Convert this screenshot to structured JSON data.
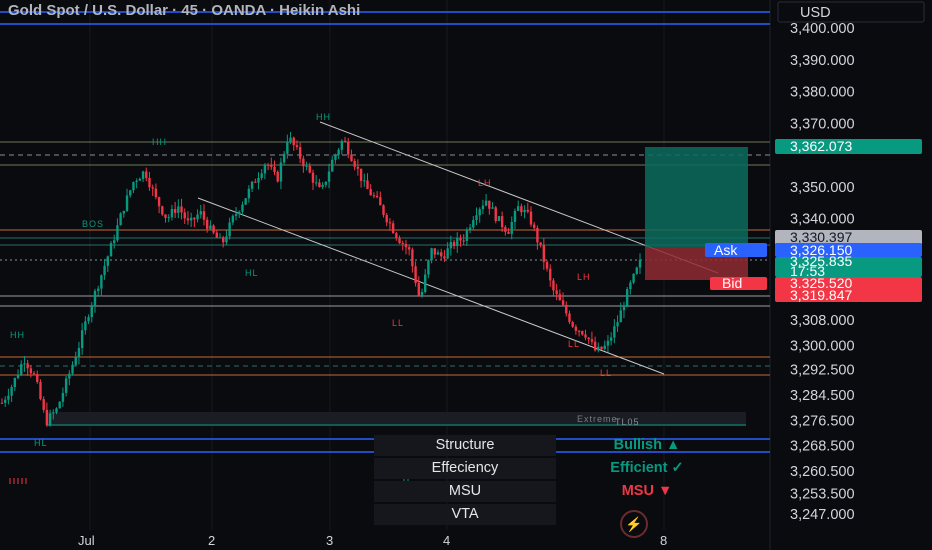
{
  "header": {
    "title": "Gold Spot / U.S. Dollar · 45 · OANDA · Heikin Ashi"
  },
  "axis": {
    "currency": "USD"
  },
  "chart_data": {
    "type": "candlestick",
    "symbol": "Gold Spot / U.S. Dollar",
    "interval": "45",
    "broker": "OANDA",
    "style": "Heikin Ashi",
    "y_ticks": [
      3400,
      3390,
      3380,
      3370,
      3350,
      3340,
      3308,
      3300,
      3292.5,
      3284.5,
      3276.5,
      3268.5,
      3260.5,
      3253.5,
      3247
    ],
    "y_tick_labels": [
      "3,400.000",
      "3,390.000",
      "3,380.000",
      "3,370.000",
      "3,350.000",
      "3,340.000",
      "3,308.000",
      "3,300.000",
      "3,292.500",
      "3,284.500",
      "3,276.500",
      "3,268.500",
      "3,260.500",
      "3,253.500",
      "3,247.000"
    ],
    "x_labels": [
      "Jul",
      "2",
      "3",
      "4",
      "8"
    ],
    "price_tags": [
      {
        "label": "3,362.073",
        "color": "#089981",
        "prefix": ""
      },
      {
        "label": "3,330.397",
        "color": "#b2b5be",
        "prefix": ""
      },
      {
        "label": "3,326.150",
        "color": "#2962ff",
        "prefix": "Ask"
      },
      {
        "label": "3,325.835",
        "color": "#089981",
        "prefix": "",
        "sub": "17:53"
      },
      {
        "label": "3,325.520",
        "color": "#f23645",
        "prefix": "Bid"
      },
      {
        "label": "3,319.847",
        "color": "#f23645",
        "prefix": ""
      }
    ],
    "structure_labels": [
      "HH",
      "HH",
      "HH",
      "HL",
      "HL",
      "LL",
      "LL",
      "LL",
      "LH",
      "LH",
      "BOS"
    ],
    "annotations": [
      "Extreme",
      "TL05"
    ],
    "ohlc_path": [
      3282,
      3288,
      3296,
      3290,
      3276,
      3280,
      3290,
      3300,
      3312,
      3322,
      3332,
      3343,
      3352,
      3355,
      3346,
      3340,
      3344,
      3338,
      3342,
      3336,
      3332,
      3340,
      3346,
      3352,
      3358,
      3352,
      3366,
      3360,
      3354,
      3348,
      3358,
      3365,
      3358,
      3350,
      3346,
      3340,
      3334,
      3330,
      3314,
      3330,
      3328,
      3332,
      3334,
      3342,
      3346,
      3340,
      3336,
      3344,
      3340,
      3330,
      3318,
      3312,
      3306,
      3304,
      3298,
      3300,
      3308,
      3318,
      3326
    ]
  },
  "table": {
    "rows": [
      {
        "label": "Structure",
        "value": "Bullish ▲",
        "color": "#089981"
      },
      {
        "label": "Effeciency",
        "value": "Efficient ✓",
        "color": "#089981"
      },
      {
        "label": "MSU",
        "value": "MSU ▼",
        "color": "#f23645"
      },
      {
        "label": "VTA",
        "value": "",
        "color": "#d1d4dc"
      }
    ]
  },
  "icons": {
    "bolt": "⚡"
  }
}
